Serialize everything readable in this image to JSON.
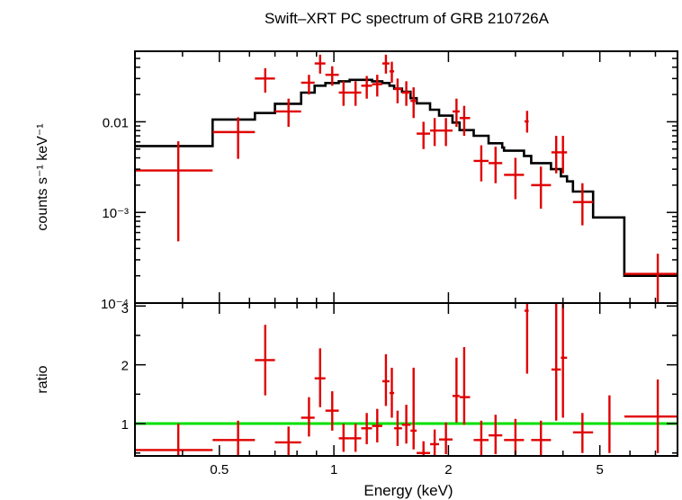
{
  "chart_data": [
    {
      "type": "scatter",
      "panel": "spectrum",
      "title": "Swift–XRT PC spectrum of GRB 210726A",
      "ylabel": "counts s⁻¹ keV⁻¹",
      "yscale": "log",
      "xscale": "log",
      "xlim": [
        0.3,
        8.0
      ],
      "ylim": [
        0.0001,
        0.06
      ],
      "y_ticks": [
        {
          "value": 0.01,
          "label": "0.01"
        },
        {
          "value": 0.001,
          "label": "10⁻³"
        },
        {
          "value": 0.0001,
          "label": "10⁻⁴"
        }
      ],
      "data_color": "#e00000",
      "model_color": "#000000",
      "data": [
        {
          "x": 0.39,
          "xlo": 0.3,
          "xhi": 0.48,
          "y": 0.0029,
          "ylo": 0.00048,
          "yhi": 0.0061
        },
        {
          "x": 0.56,
          "xlo": 0.48,
          "xhi": 0.62,
          "y": 0.0077,
          "ylo": 0.0039,
          "yhi": 0.0112
        },
        {
          "x": 0.66,
          "xlo": 0.62,
          "xhi": 0.7,
          "y": 0.03,
          "ylo": 0.021,
          "yhi": 0.039
        },
        {
          "x": 0.76,
          "xlo": 0.7,
          "xhi": 0.82,
          "y": 0.013,
          "ylo": 0.0088,
          "yhi": 0.018
        },
        {
          "x": 0.86,
          "xlo": 0.82,
          "xhi": 0.89,
          "y": 0.027,
          "ylo": 0.02,
          "yhi": 0.033
        },
        {
          "x": 0.92,
          "xlo": 0.89,
          "xhi": 0.95,
          "y": 0.044,
          "ylo": 0.034,
          "yhi": 0.055
        },
        {
          "x": 0.99,
          "xlo": 0.95,
          "xhi": 1.03,
          "y": 0.033,
          "ylo": 0.025,
          "yhi": 0.041
        },
        {
          "x": 1.06,
          "xlo": 1.03,
          "xhi": 1.1,
          "y": 0.021,
          "ylo": 0.015,
          "yhi": 0.028
        },
        {
          "x": 1.14,
          "xlo": 1.1,
          "xhi": 1.18,
          "y": 0.021,
          "ylo": 0.015,
          "yhi": 0.028
        },
        {
          "x": 1.22,
          "xlo": 1.18,
          "xhi": 1.26,
          "y": 0.025,
          "ylo": 0.018,
          "yhi": 0.032
        },
        {
          "x": 1.3,
          "xlo": 1.26,
          "xhi": 1.34,
          "y": 0.026,
          "ylo": 0.019,
          "yhi": 0.033
        },
        {
          "x": 1.37,
          "xlo": 1.34,
          "xhi": 1.4,
          "y": 0.044,
          "ylo": 0.034,
          "yhi": 0.055
        },
        {
          "x": 1.42,
          "xlo": 1.4,
          "xhi": 1.44,
          "y": 0.036,
          "ylo": 0.027,
          "yhi": 0.046
        },
        {
          "x": 1.47,
          "xlo": 1.44,
          "xhi": 1.51,
          "y": 0.023,
          "ylo": 0.016,
          "yhi": 0.03
        },
        {
          "x": 1.55,
          "xlo": 1.51,
          "xhi": 1.59,
          "y": 0.021,
          "ylo": 0.015,
          "yhi": 0.028
        },
        {
          "x": 1.62,
          "xlo": 1.59,
          "xhi": 1.65,
          "y": 0.017,
          "ylo": 0.011,
          "yhi": 0.024
        },
        {
          "x": 1.72,
          "xlo": 1.65,
          "xhi": 1.79,
          "y": 0.0074,
          "ylo": 0.005,
          "yhi": 0.01
        },
        {
          "x": 1.84,
          "xlo": 1.79,
          "xhi": 1.89,
          "y": 0.008,
          "ylo": 0.0054,
          "yhi": 0.011
        },
        {
          "x": 1.97,
          "xlo": 1.89,
          "xhi": 2.05,
          "y": 0.008,
          "ylo": 0.0054,
          "yhi": 0.011
        },
        {
          "x": 2.1,
          "xlo": 2.05,
          "xhi": 2.14,
          "y": 0.013,
          "ylo": 0.0088,
          "yhi": 0.018
        },
        {
          "x": 2.2,
          "xlo": 2.14,
          "xhi": 2.28,
          "y": 0.011,
          "ylo": 0.007,
          "yhi": 0.015
        },
        {
          "x": 2.44,
          "xlo": 2.33,
          "xhi": 2.55,
          "y": 0.0037,
          "ylo": 0.0022,
          "yhi": 0.0055
        },
        {
          "x": 2.66,
          "xlo": 2.55,
          "xhi": 2.77,
          "y": 0.0035,
          "ylo": 0.0021,
          "yhi": 0.0053
        },
        {
          "x": 3.0,
          "xlo": 2.8,
          "xhi": 3.16,
          "y": 0.0026,
          "ylo": 0.0014,
          "yhi": 0.004
        },
        {
          "x": 3.22,
          "xlo": 3.17,
          "xhi": 3.25,
          "y": 0.0101,
          "ylo": 0.0076,
          "yhi": 0.0132
        },
        {
          "x": 3.5,
          "xlo": 3.3,
          "xhi": 3.72,
          "y": 0.002,
          "ylo": 0.0011,
          "yhi": 0.0032
        },
        {
          "x": 3.84,
          "xlo": 3.73,
          "xhi": 3.95,
          "y": 0.0046,
          "ylo": 0.0027,
          "yhi": 0.007
        },
        {
          "x": 4.0,
          "xlo": 3.95,
          "xhi": 4.1,
          "y": 0.0046,
          "ylo": 0.0027,
          "yhi": 0.007
        },
        {
          "x": 4.5,
          "xlo": 4.25,
          "xhi": 4.8,
          "y": 0.0013,
          "ylo": 0.00072,
          "yhi": 0.0021
        },
        {
          "x": 7.1,
          "xlo": 5.8,
          "xhi": 8.0,
          "y": 0.00021,
          "ylo": 0.0001,
          "yhi": 0.00035
        }
      ],
      "model": {
        "bin_edges": [
          0.3,
          0.48,
          0.62,
          0.7,
          0.82,
          0.89,
          0.95,
          1.03,
          1.1,
          1.18,
          1.26,
          1.34,
          1.4,
          1.44,
          1.51,
          1.59,
          1.65,
          1.79,
          1.89,
          2.05,
          2.14,
          2.28,
          2.33,
          2.55,
          2.77,
          2.8,
          3.16,
          3.3,
          3.72,
          3.95,
          4.1,
          4.25,
          4.8,
          5.8,
          8.0
        ],
        "values": [
          0.0054,
          0.0106,
          0.0125,
          0.0158,
          0.021,
          0.025,
          0.0268,
          0.028,
          0.029,
          0.029,
          0.028,
          0.0268,
          0.025,
          0.0232,
          0.0214,
          0.0182,
          0.016,
          0.0136,
          0.0117,
          0.0098,
          0.0081,
          0.0081,
          0.007,
          0.0058,
          0.0052,
          0.0048,
          0.0042,
          0.0035,
          0.003,
          0.0025,
          0.0022,
          0.0017,
          0.00088,
          0.0002
        ]
      }
    },
    {
      "type": "scatter",
      "panel": "ratio",
      "xlabel": "Energy (keV)",
      "ylabel": "ratio",
      "xscale": "log",
      "xlim": [
        0.3,
        8.0
      ],
      "ylim": [
        0.45,
        3.05
      ],
      "x_ticks": [
        {
          "value": 0.5,
          "label": "0.5"
        },
        {
          "value": 1,
          "label": "1"
        },
        {
          "value": 2,
          "label": "2"
        },
        {
          "value": 5,
          "label": "5"
        }
      ],
      "y_ticks": [
        {
          "value": 1,
          "label": "1"
        },
        {
          "value": 2,
          "label": "2"
        },
        {
          "value": 3,
          "label": "3"
        }
      ],
      "reference_line": {
        "y": 1,
        "color": "#00e000"
      },
      "data_color": "#e00000",
      "data": [
        {
          "x": 0.39,
          "xlo": 0.3,
          "xhi": 0.48,
          "y": 0.55,
          "ylo": 0.45,
          "yhi": 1.0
        },
        {
          "x": 0.56,
          "xlo": 0.48,
          "xhi": 0.62,
          "y": 0.72,
          "ylo": 0.45,
          "yhi": 1.05
        },
        {
          "x": 0.66,
          "xlo": 0.62,
          "xhi": 0.7,
          "y": 2.08,
          "ylo": 1.48,
          "yhi": 2.68
        },
        {
          "x": 0.76,
          "xlo": 0.7,
          "xhi": 0.82,
          "y": 0.68,
          "ylo": 0.45,
          "yhi": 0.95
        },
        {
          "x": 0.86,
          "xlo": 0.82,
          "xhi": 0.89,
          "y": 1.1,
          "ylo": 0.78,
          "yhi": 1.45
        },
        {
          "x": 0.92,
          "xlo": 0.89,
          "xhi": 0.95,
          "y": 1.77,
          "ylo": 1.28,
          "yhi": 2.28
        },
        {
          "x": 0.99,
          "xlo": 0.95,
          "xhi": 1.03,
          "y": 1.22,
          "ylo": 0.88,
          "yhi": 1.55
        },
        {
          "x": 1.06,
          "xlo": 1.03,
          "xhi": 1.1,
          "y": 0.75,
          "ylo": 0.52,
          "yhi": 1.0
        },
        {
          "x": 1.14,
          "xlo": 1.1,
          "xhi": 1.18,
          "y": 0.75,
          "ylo": 0.52,
          "yhi": 1.0
        },
        {
          "x": 1.22,
          "xlo": 1.18,
          "xhi": 1.26,
          "y": 0.92,
          "ylo": 0.65,
          "yhi": 1.18
        },
        {
          "x": 1.3,
          "xlo": 1.26,
          "xhi": 1.34,
          "y": 0.96,
          "ylo": 0.68,
          "yhi": 1.25
        },
        {
          "x": 1.37,
          "xlo": 1.34,
          "xhi": 1.4,
          "y": 1.72,
          "ylo": 1.3,
          "yhi": 2.18
        },
        {
          "x": 1.42,
          "xlo": 1.4,
          "xhi": 1.44,
          "y": 1.52,
          "ylo": 1.1,
          "yhi": 1.95
        },
        {
          "x": 1.47,
          "xlo": 1.44,
          "xhi": 1.51,
          "y": 0.92,
          "ylo": 0.62,
          "yhi": 1.22
        },
        {
          "x": 1.55,
          "xlo": 1.51,
          "xhi": 1.59,
          "y": 0.98,
          "ylo": 0.66,
          "yhi": 1.32
        },
        {
          "x": 1.62,
          "xlo": 1.59,
          "xhi": 1.65,
          "y": 0.88,
          "ylo": 0.56,
          "yhi": 1.95
        },
        {
          "x": 1.72,
          "xlo": 1.65,
          "xhi": 1.79,
          "y": 0.5,
          "ylo": 0.45,
          "yhi": 0.7
        },
        {
          "x": 1.84,
          "xlo": 1.79,
          "xhi": 1.89,
          "y": 0.65,
          "ylo": 0.45,
          "yhi": 0.9
        },
        {
          "x": 1.97,
          "xlo": 1.89,
          "xhi": 2.05,
          "y": 0.73,
          "ylo": 0.48,
          "yhi": 1.02
        },
        {
          "x": 2.1,
          "xlo": 2.05,
          "xhi": 2.14,
          "y": 1.47,
          "ylo": 1.02,
          "yhi": 2.12
        },
        {
          "x": 2.2,
          "xlo": 2.14,
          "xhi": 2.28,
          "y": 1.45,
          "ylo": 0.98,
          "yhi": 2.3
        },
        {
          "x": 2.44,
          "xlo": 2.33,
          "xhi": 2.55,
          "y": 0.72,
          "ylo": 0.45,
          "yhi": 1.05
        },
        {
          "x": 2.66,
          "xlo": 2.55,
          "xhi": 2.77,
          "y": 0.8,
          "ylo": 0.48,
          "yhi": 1.15
        },
        {
          "x": 3.0,
          "xlo": 2.8,
          "xhi": 3.16,
          "y": 0.72,
          "ylo": 0.45,
          "yhi": 1.08
        },
        {
          "x": 3.22,
          "xlo": 3.17,
          "xhi": 3.25,
          "y": 2.92,
          "ylo": 1.85,
          "yhi": 3.05
        },
        {
          "x": 3.5,
          "xlo": 3.3,
          "xhi": 3.72,
          "y": 0.72,
          "ylo": 0.45,
          "yhi": 1.05
        },
        {
          "x": 3.84,
          "xlo": 3.73,
          "xhi": 3.95,
          "y": 1.92,
          "ylo": 1.05,
          "yhi": 3.05
        },
        {
          "x": 4.0,
          "xlo": 3.95,
          "xhi": 4.1,
          "y": 2.12,
          "ylo": 1.1,
          "yhi": 3.05
        },
        {
          "x": 4.5,
          "xlo": 4.25,
          "xhi": 4.8,
          "y": 0.85,
          "ylo": 0.5,
          "yhi": 1.18
        },
        {
          "x": 5.3,
          "xlo": 5.28,
          "xhi": 5.32,
          "y": 0.85,
          "ylo": 0.5,
          "yhi": 1.48
        },
        {
          "x": 7.1,
          "xlo": 5.8,
          "xhi": 8.0,
          "y": 1.12,
          "ylo": 0.5,
          "yhi": 1.75
        }
      ]
    }
  ]
}
